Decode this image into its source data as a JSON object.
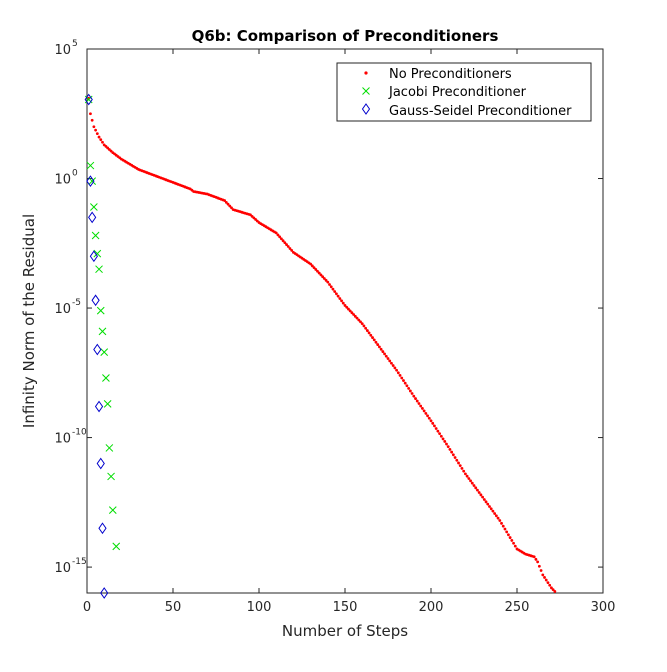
{
  "chart_data": {
    "type": "scatter",
    "title": "Q6b: Comparison of Preconditioners",
    "xlabel": "Number of Steps",
    "ylabel": "Infinity Norm of the Residual",
    "xlim": [
      0,
      300
    ],
    "ylim_log10": [
      -16,
      5
    ],
    "yscale": "log",
    "x_ticks": [
      "0",
      "50",
      "100",
      "150",
      "200",
      "250",
      "300"
    ],
    "y_ticks": [
      {
        "base": "10",
        "exp": "5"
      },
      {
        "base": "10",
        "exp": "0"
      },
      {
        "base": "10",
        "exp": "-5"
      },
      {
        "base": "10",
        "exp": "-10"
      },
      {
        "base": "10",
        "exp": "-15"
      }
    ],
    "grid": false,
    "legend_position": "top-right",
    "series": [
      {
        "name": "No Preconditioners",
        "color": "#ff0000",
        "marker": "dot",
        "curve_log10": [
          [
            1,
            3.1
          ],
          [
            2,
            2.5
          ],
          [
            4,
            2.0
          ],
          [
            7,
            1.6
          ],
          [
            10,
            1.3
          ],
          [
            15,
            1.0
          ],
          [
            20,
            0.75
          ],
          [
            25,
            0.55
          ],
          [
            30,
            0.35
          ],
          [
            40,
            0.1
          ],
          [
            50,
            -0.15
          ],
          [
            60,
            -0.4
          ],
          [
            62,
            -0.5
          ],
          [
            70,
            -0.6
          ],
          [
            80,
            -0.85
          ],
          [
            85,
            -1.2
          ],
          [
            95,
            -1.4
          ],
          [
            100,
            -1.7
          ],
          [
            110,
            -2.1
          ],
          [
            120,
            -2.85
          ],
          [
            130,
            -3.3
          ],
          [
            140,
            -4.0
          ],
          [
            150,
            -4.9
          ],
          [
            160,
            -5.6
          ],
          [
            170,
            -6.5
          ],
          [
            180,
            -7.4
          ],
          [
            190,
            -8.4
          ],
          [
            200,
            -9.35
          ],
          [
            210,
            -10.35
          ],
          [
            220,
            -11.4
          ],
          [
            230,
            -12.3
          ],
          [
            240,
            -13.2
          ],
          [
            250,
            -14.3
          ],
          [
            255,
            -14.5
          ],
          [
            260,
            -14.6
          ],
          [
            262,
            -14.8
          ],
          [
            265,
            -15.3
          ],
          [
            270,
            -15.8
          ],
          [
            280,
            -16.5
          ]
        ],
        "x_range": [
          1,
          282
        ]
      },
      {
        "name": "Jacobi Preconditioner",
        "color": "#00dd00",
        "marker": "x",
        "x": [
          1,
          2,
          3,
          4,
          5,
          6,
          7,
          8,
          9,
          10,
          11,
          12,
          13,
          14,
          15,
          17
        ],
        "y_log10": [
          3.05,
          0.5,
          -0.1,
          -1.1,
          -2.2,
          -2.9,
          -3.5,
          -5.1,
          -5.9,
          -6.7,
          -7.7,
          -8.7,
          -10.4,
          -11.5,
          -12.8,
          -14.2
        ]
      },
      {
        "name": "Gauss-Seidel Preconditioner",
        "color": "#0000cc",
        "marker": "diamond",
        "x": [
          1,
          2,
          3,
          4,
          5,
          6,
          7,
          8,
          9,
          10
        ],
        "y_log10": [
          3.05,
          -0.1,
          -1.5,
          -3.0,
          -4.7,
          -6.6,
          -8.8,
          -11.0,
          -13.5,
          -16.0
        ]
      }
    ]
  }
}
